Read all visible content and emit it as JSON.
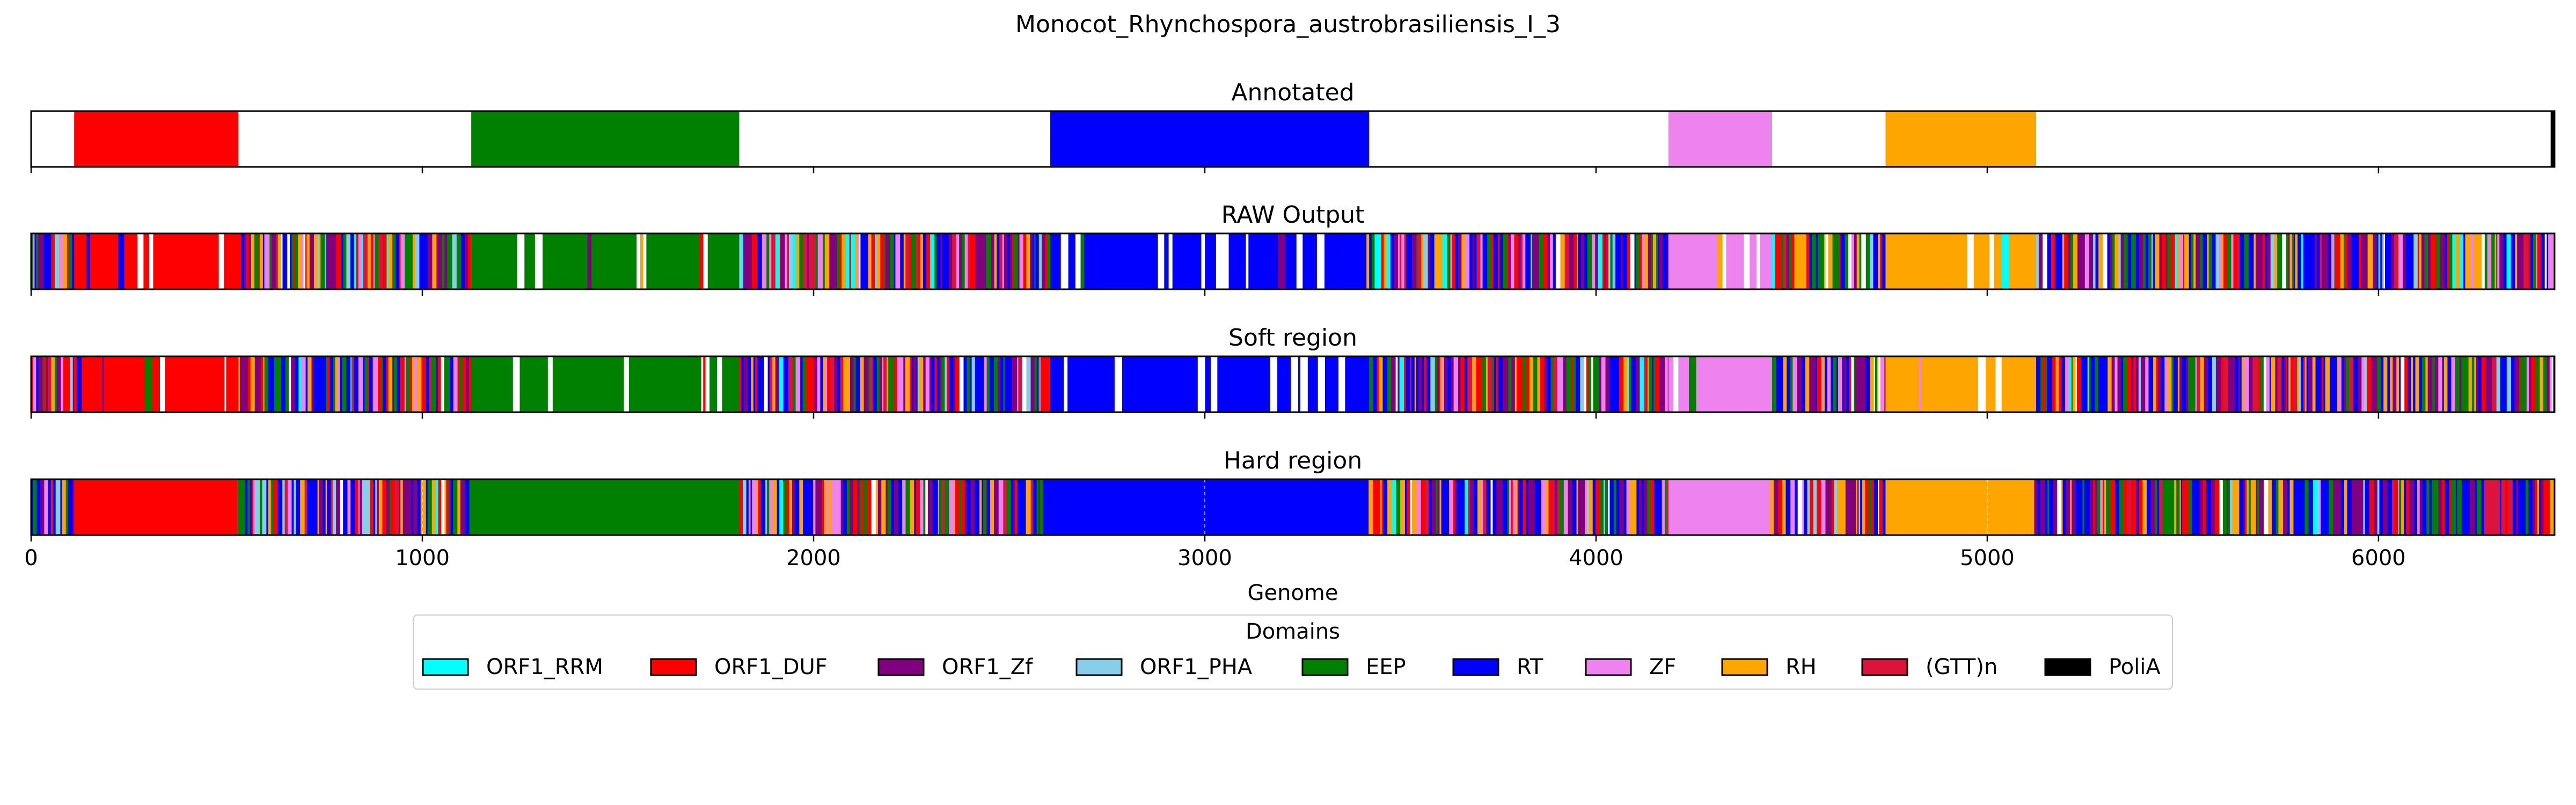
{
  "figure": {
    "title": "Monocot_Rhynchospora_austrobrasiliensis_I_3"
  },
  "chart_data": {
    "type": "bar",
    "subtype": "genome domain track (broken_barh)",
    "xlabel": "Genome",
    "xlim": [
      0,
      6450
    ],
    "xticks": [
      0,
      1000,
      2000,
      3000,
      4000,
      5000,
      6000
    ],
    "xtick_labels": [
      "0",
      "1000",
      "2000",
      "3000",
      "4000",
      "5000",
      "6000"
    ],
    "grid": false,
    "legend": {
      "title": "Domains",
      "placement": "below plots, centered",
      "entries": [
        {
          "name": "ORF1_RRM",
          "color": "#00ffff"
        },
        {
          "name": "ORF1_DUF",
          "color": "#ff0000"
        },
        {
          "name": "ORF1_Zf",
          "color": "#800080"
        },
        {
          "name": "ORF1_PHA",
          "color": "#87ceeb"
        },
        {
          "name": "EEP",
          "color": "#008000"
        },
        {
          "name": "RT",
          "color": "#0000ff"
        },
        {
          "name": "ZF",
          "color": "#ee82ee"
        },
        {
          "name": "RH",
          "color": "#ffa500"
        },
        {
          "name": "(GTT)n",
          "color": "#dc143c"
        },
        {
          "name": "PoliA",
          "color": "#000000"
        }
      ]
    },
    "panels": [
      {
        "title": "Annotated",
        "kind": "annotated",
        "segments": [
          {
            "domain": "ORF1_DUF",
            "start": 110,
            "end": 530
          },
          {
            "domain": "EEP",
            "start": 1125,
            "end": 1810
          },
          {
            "domain": "RT",
            "start": 2605,
            "end": 3420
          },
          {
            "domain": "ZF",
            "start": 4185,
            "end": 4450
          },
          {
            "domain": "RH",
            "start": 4740,
            "end": 5125
          },
          {
            "domain": "PoliA",
            "start": 6440,
            "end": 6450
          }
        ]
      },
      {
        "title": "RAW Output",
        "kind": "noisy",
        "seed": 11,
        "base_segments": [
          {
            "domain": "ORF1_DUF",
            "start": 110,
            "end": 530,
            "purity": 0.82
          },
          {
            "domain": "EEP",
            "start": 1125,
            "end": 1810,
            "purity": 0.85
          },
          {
            "domain": "RT",
            "start": 2605,
            "end": 3420,
            "purity": 0.86
          },
          {
            "domain": "ZF",
            "start": 4185,
            "end": 4450,
            "purity": 0.8
          },
          {
            "domain": "RH",
            "start": 4740,
            "end": 5125,
            "purity": 0.88
          }
        ]
      },
      {
        "title": "Soft region",
        "kind": "noisy",
        "seed": 23,
        "base_segments": [
          {
            "domain": "ORF1_DUF",
            "start": 110,
            "end": 530,
            "purity": 0.83
          },
          {
            "domain": "EEP",
            "start": 1125,
            "end": 1810,
            "purity": 0.85
          },
          {
            "domain": "RT",
            "start": 2605,
            "end": 3420,
            "purity": 0.86
          },
          {
            "domain": "ZF",
            "start": 4185,
            "end": 4450,
            "purity": 0.8
          },
          {
            "domain": "RH",
            "start": 4740,
            "end": 5125,
            "purity": 0.88
          }
        ]
      },
      {
        "title": "Hard region",
        "kind": "hard",
        "seed": 37,
        "base_segments": [
          {
            "domain": "ORF1_DUF",
            "start": 110,
            "end": 525
          },
          {
            "domain": "EEP",
            "start": 1120,
            "end": 1810
          },
          {
            "domain": "RT",
            "start": 2605,
            "end": 3410
          },
          {
            "domain": "ZF",
            "start": 4185,
            "end": 4445
          },
          {
            "domain": "RH",
            "start": 4740,
            "end": 5120
          },
          {
            "domain": "(GTT)n",
            "start": 6270,
            "end": 6310
          }
        ]
      }
    ]
  }
}
